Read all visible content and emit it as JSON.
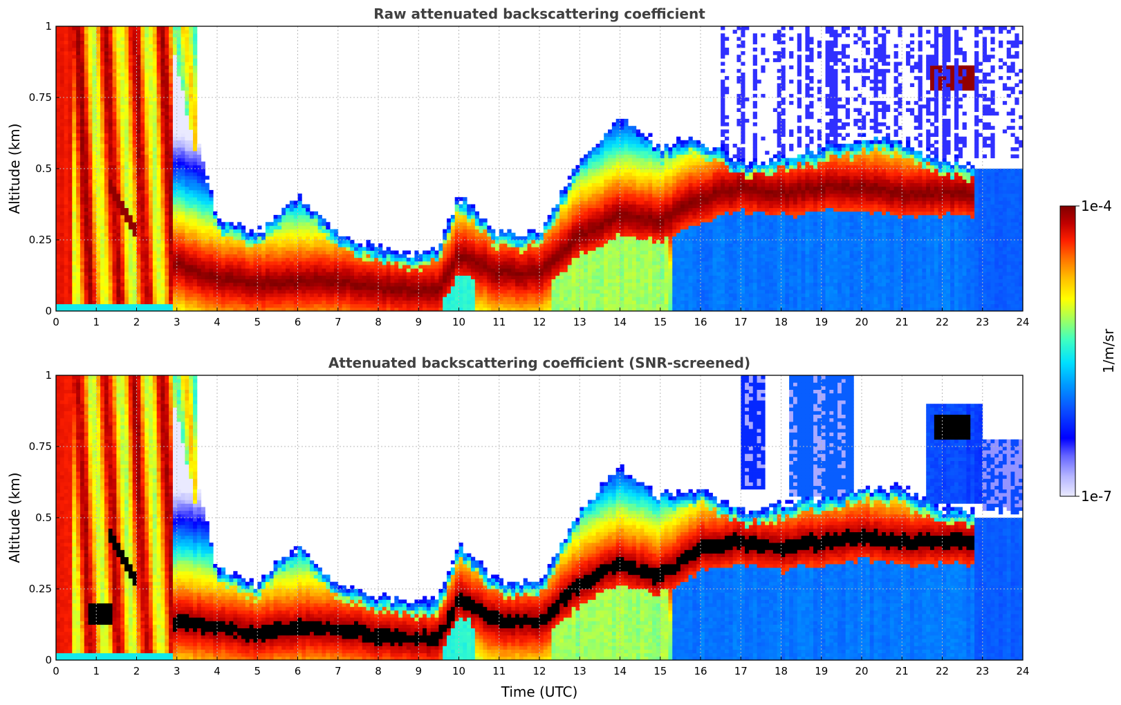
{
  "chart_data": [
    {
      "type": "heatmap",
      "title": "Raw attenuated backscattering coefficient",
      "xlabel": "",
      "ylabel": "Altitude (km)",
      "xlim": [
        0,
        24
      ],
      "ylim": [
        0,
        1
      ],
      "x_ticks": [
        "0",
        "1",
        "2",
        "3",
        "4",
        "5",
        "6",
        "7",
        "8",
        "9",
        "10",
        "11",
        "12",
        "13",
        "14",
        "15",
        "16",
        "17",
        "18",
        "19",
        "20",
        "21",
        "22",
        "23",
        "24"
      ],
      "y_ticks": [
        "0",
        "0.25",
        "0.5",
        "0.75",
        "1"
      ],
      "grid": true,
      "layers": [
        {
          "name": "boundary layer core (dark red)",
          "t": [
            0,
            1,
            2,
            3,
            4,
            5,
            6,
            7,
            8,
            9,
            9.5,
            10,
            11,
            12,
            13,
            14,
            15,
            16,
            17,
            18,
            19,
            20,
            21,
            22,
            22.8
          ],
          "alt": [
            0.15,
            0.15,
            0.16,
            0.15,
            0.1,
            0.08,
            0.09,
            0.09,
            0.07,
            0.06,
            0.06,
            0.18,
            0.12,
            0.12,
            0.25,
            0.32,
            0.3,
            0.38,
            0.42,
            0.4,
            0.42,
            0.42,
            0.4,
            0.4,
            0.4
          ]
        },
        {
          "name": "aerosol layer top",
          "t": [
            2.9,
            3.5,
            4,
            5,
            6,
            7,
            8,
            9,
            9.5,
            10,
            11,
            12,
            13,
            14,
            15,
            16,
            17,
            18,
            19,
            20,
            21,
            22,
            22.8
          ],
          "alt": [
            1.0,
            0.6,
            0.3,
            0.25,
            0.38,
            0.25,
            0.2,
            0.18,
            0.2,
            0.38,
            0.25,
            0.25,
            0.5,
            0.65,
            0.55,
            0.58,
            0.5,
            0.52,
            0.55,
            0.58,
            0.58,
            0.5,
            0.5
          ]
        },
        {
          "name": "noise ceiling (>17 UTC)",
          "t": [
            15.5,
            24
          ],
          "alt": [
            1.0,
            1.0
          ]
        },
        {
          "name": "elevated cloud patches",
          "t": [
            21.8,
            22.5
          ],
          "alt": [
            0.84,
            0.8
          ]
        }
      ]
    },
    {
      "type": "heatmap",
      "title": "Attenuated backscattering coefficient (SNR-screened)",
      "xlabel": "Time (UTC)",
      "ylabel": "Altitude (km)",
      "xlim": [
        0,
        24
      ],
      "ylim": [
        0,
        1
      ],
      "x_ticks": [
        "0",
        "1",
        "2",
        "3",
        "4",
        "5",
        "6",
        "7",
        "8",
        "9",
        "10",
        "11",
        "12",
        "13",
        "14",
        "15",
        "16",
        "17",
        "18",
        "19",
        "20",
        "21",
        "22",
        "23",
        "24"
      ],
      "y_ticks": [
        "0",
        "0.25",
        "0.5",
        "0.75",
        "1"
      ],
      "grid": true,
      "layers": [
        {
          "name": "saturated core (black)",
          "t": [
            3.2,
            4,
            5,
            6,
            7,
            8,
            9,
            9.5,
            10,
            11,
            12,
            13,
            14,
            15,
            16,
            17,
            18,
            19,
            20,
            21,
            22,
            22.8
          ],
          "alt": [
            0.12,
            0.1,
            0.08,
            0.1,
            0.1,
            0.07,
            0.06,
            0.06,
            0.2,
            0.12,
            0.12,
            0.25,
            0.32,
            0.28,
            0.38,
            0.4,
            0.38,
            0.4,
            0.42,
            0.4,
            0.4,
            0.4
          ]
        },
        {
          "name": "aerosol layer top",
          "t": [
            2.9,
            3.5,
            4,
            5,
            6,
            7,
            8,
            9,
            9.5,
            10,
            11,
            12,
            13,
            14,
            15,
            16,
            17,
            18,
            19,
            20,
            21,
            22,
            22.8
          ],
          "alt": [
            1.0,
            0.6,
            0.3,
            0.25,
            0.38,
            0.25,
            0.2,
            0.18,
            0.2,
            0.38,
            0.25,
            0.25,
            0.5,
            0.65,
            0.55,
            0.58,
            0.5,
            0.52,
            0.55,
            0.58,
            0.58,
            0.5,
            0.5
          ]
        },
        {
          "name": "screened upper clouds",
          "t": [
            17,
            18,
            19,
            19.8,
            21.5,
            22.5,
            24
          ],
          "alt": [
            1.0,
            0.6,
            1.0,
            0.6,
            0.8,
            0.9,
            0.8
          ]
        }
      ]
    }
  ],
  "colorbar": {
    "label": "1/m/sr",
    "max_label": "1e-4",
    "min_label": "1e-7",
    "scale": "log",
    "range": [
      1e-07,
      0.0001
    ],
    "colors": [
      "#eaeaff",
      "#b4b4ff",
      "#6464ff",
      "#0000ff",
      "#0a50ff",
      "#0096ff",
      "#00e0ff",
      "#40ffc0",
      "#b0ff50",
      "#ffff00",
      "#ffc000",
      "#ff7000",
      "#ff2000",
      "#c00000",
      "#800000"
    ]
  }
}
